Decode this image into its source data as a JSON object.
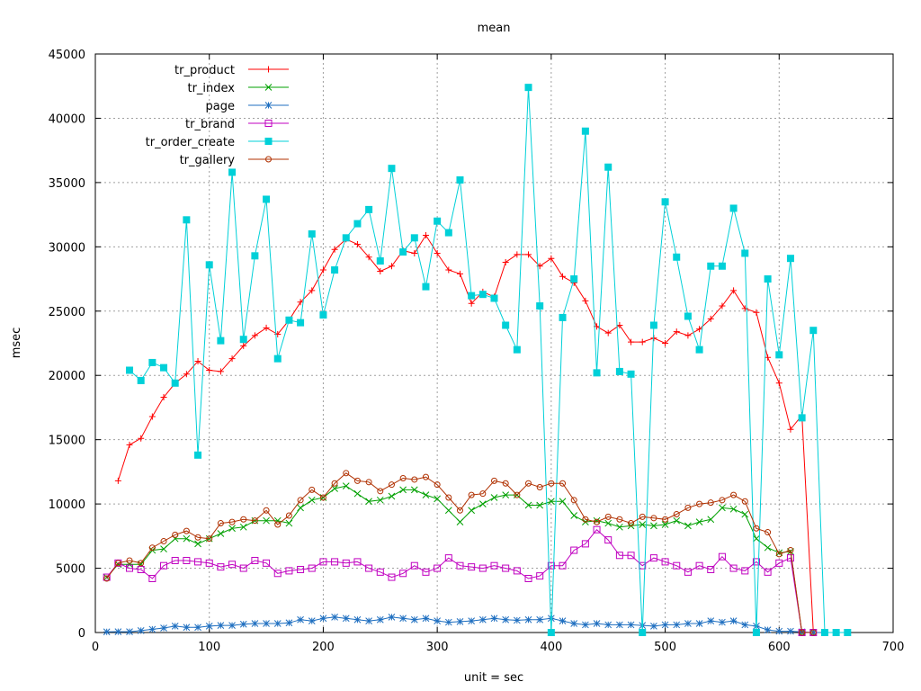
{
  "chart_data": {
    "type": "line",
    "title": "mean",
    "xlabel": "unit = sec",
    "ylabel": "msec",
    "xlim": [
      0,
      700
    ],
    "ylim": [
      0,
      45000
    ],
    "xticks": [
      0,
      100,
      200,
      300,
      400,
      500,
      600,
      700
    ],
    "yticks": [
      0,
      5000,
      10000,
      15000,
      20000,
      25000,
      30000,
      35000,
      40000,
      45000
    ],
    "grid": true,
    "legend_position": "top-left",
    "series": [
      {
        "name": "tr_product",
        "color": "#ff0000",
        "marker": "plus",
        "x": [
          20,
          30,
          40,
          50,
          60,
          70,
          80,
          90,
          100,
          110,
          120,
          130,
          140,
          150,
          160,
          170,
          180,
          190,
          200,
          210,
          220,
          230,
          240,
          250,
          260,
          270,
          280,
          290,
          300,
          310,
          320,
          330,
          340,
          350,
          360,
          370,
          380,
          390,
          400,
          410,
          420,
          430,
          440,
          450,
          460,
          470,
          480,
          490,
          500,
          510,
          520,
          530,
          540,
          550,
          560,
          570,
          580,
          590,
          600,
          610,
          620,
          630
        ],
        "y": [
          11800,
          14600,
          15100,
          16800,
          18300,
          19400,
          20100,
          21100,
          20400,
          20300,
          21300,
          22300,
          23100,
          23700,
          23200,
          24300,
          25700,
          26600,
          28200,
          29800,
          30600,
          30200,
          29200,
          28100,
          28500,
          29700,
          29500,
          30900,
          29500,
          28200,
          27900,
          25600,
          26500,
          26100,
          28800,
          29400,
          29400,
          28500,
          29100,
          27700,
          27200,
          25800,
          23800,
          23300,
          23900,
          22600,
          22600,
          22900,
          22500,
          23400,
          23100,
          23600,
          24400,
          25400,
          26600,
          25200,
          24900,
          21400,
          19400,
          15800,
          16900,
          0
        ]
      },
      {
        "name": "tr_index",
        "color": "#00a000",
        "marker": "x",
        "x": [
          10,
          20,
          30,
          40,
          50,
          60,
          70,
          80,
          90,
          100,
          110,
          120,
          130,
          140,
          150,
          160,
          170,
          180,
          190,
          200,
          210,
          220,
          230,
          240,
          250,
          260,
          270,
          280,
          290,
          300,
          310,
          320,
          330,
          340,
          350,
          360,
          370,
          380,
          390,
          400,
          410,
          420,
          430,
          440,
          450,
          460,
          470,
          480,
          490,
          500,
          510,
          520,
          530,
          540,
          550,
          560,
          570,
          580,
          590,
          600,
          610,
          620,
          630
        ],
        "y": [
          4300,
          5300,
          5300,
          5300,
          6400,
          6500,
          7300,
          7300,
          6900,
          7300,
          7700,
          8100,
          8200,
          8700,
          8700,
          8700,
          8500,
          9700,
          10300,
          10500,
          11200,
          11400,
          10800,
          10200,
          10300,
          10600,
          11100,
          11100,
          10700,
          10400,
          9500,
          8600,
          9500,
          10000,
          10500,
          10700,
          10700,
          9900,
          9900,
          10200,
          10200,
          9100,
          8600,
          8700,
          8500,
          8200,
          8300,
          8400,
          8300,
          8400,
          8700,
          8300,
          8600,
          8800,
          9700,
          9600,
          9200,
          7300,
          6600,
          6200,
          6300,
          0,
          0
        ]
      },
      {
        "name": "page",
        "color": "#1f6fc0",
        "marker": "star",
        "x": [
          10,
          20,
          30,
          40,
          50,
          60,
          70,
          80,
          90,
          100,
          110,
          120,
          130,
          140,
          150,
          160,
          170,
          180,
          190,
          200,
          210,
          220,
          230,
          240,
          250,
          260,
          270,
          280,
          290,
          300,
          310,
          320,
          330,
          340,
          350,
          360,
          370,
          380,
          390,
          400,
          410,
          420,
          430,
          440,
          450,
          460,
          470,
          480,
          490,
          500,
          510,
          520,
          530,
          540,
          550,
          560,
          570,
          580,
          590,
          600,
          610,
          620,
          630,
          640
        ],
        "y": [
          50,
          60,
          60,
          150,
          250,
          350,
          500,
          400,
          400,
          500,
          550,
          550,
          650,
          700,
          700,
          700,
          750,
          1000,
          900,
          1100,
          1200,
          1100,
          1000,
          900,
          1000,
          1200,
          1100,
          1000,
          1100,
          900,
          800,
          850,
          900,
          1000,
          1100,
          1000,
          950,
          1000,
          1000,
          1100,
          900,
          700,
          600,
          700,
          600,
          600,
          600,
          550,
          500,
          600,
          600,
          700,
          700,
          900,
          800,
          900,
          600,
          500,
          200,
          100,
          100,
          50,
          0,
          0
        ]
      },
      {
        "name": "tr_brand",
        "color": "#c000c0",
        "marker": "square-open",
        "x": [
          10,
          20,
          30,
          40,
          50,
          60,
          70,
          80,
          90,
          100,
          110,
          120,
          130,
          140,
          150,
          160,
          170,
          180,
          190,
          200,
          210,
          220,
          230,
          240,
          250,
          260,
          270,
          280,
          290,
          300,
          310,
          320,
          330,
          340,
          350,
          360,
          370,
          380,
          390,
          400,
          410,
          420,
          430,
          440,
          450,
          460,
          470,
          480,
          490,
          500,
          510,
          520,
          530,
          540,
          550,
          560,
          570,
          580,
          590,
          600,
          610,
          620,
          630
        ],
        "y": [
          4300,
          5400,
          5000,
          4900,
          4200,
          5200,
          5600,
          5600,
          5500,
          5400,
          5100,
          5300,
          5000,
          5600,
          5400,
          4600,
          4800,
          4900,
          5000,
          5500,
          5500,
          5400,
          5500,
          5000,
          4700,
          4300,
          4600,
          5200,
          4700,
          5000,
          5800,
          5200,
          5100,
          5000,
          5200,
          5000,
          4800,
          4200,
          4400,
          5200,
          5200,
          6400,
          6900,
          8000,
          7200,
          6000,
          6000,
          5200,
          5800,
          5500,
          5200,
          4700,
          5200,
          4900,
          5900,
          5000,
          4800,
          5500,
          4700,
          5400,
          5800,
          0,
          0
        ]
      },
      {
        "name": "tr_order_create",
        "color": "#00d0d8",
        "marker": "square",
        "x": [
          30,
          40,
          50,
          60,
          70,
          80,
          90,
          100,
          110,
          120,
          130,
          140,
          150,
          160,
          170,
          180,
          190,
          200,
          210,
          220,
          230,
          240,
          250,
          260,
          270,
          280,
          290,
          300,
          310,
          320,
          330,
          340,
          350,
          360,
          370,
          380,
          390,
          400,
          410,
          420,
          430,
          440,
          450,
          460,
          470,
          480,
          490,
          500,
          510,
          520,
          530,
          540,
          550,
          560,
          570,
          580,
          590,
          600,
          610,
          620,
          630,
          640,
          650,
          660
        ],
        "y": [
          20400,
          19600,
          21000,
          20600,
          19400,
          32100,
          13800,
          28600,
          22700,
          35800,
          22800,
          29300,
          33700,
          21300,
          24300,
          24100,
          31000,
          24700,
          28200,
          30700,
          31800,
          32900,
          28900,
          36100,
          29600,
          30700,
          26900,
          32000,
          31100,
          35200,
          26200,
          26300,
          26000,
          23900,
          22000,
          42400,
          25400,
          0,
          24500,
          27500,
          39000,
          20200,
          36200,
          20300,
          20100,
          0,
          23900,
          33500,
          29200,
          24600,
          22000,
          28500,
          28500,
          33000,
          29500,
          0,
          27500,
          21600,
          29100,
          16700,
          23500,
          0,
          0,
          0
        ]
      },
      {
        "name": "tr_gallery",
        "color": "#b03000",
        "marker": "circle-open",
        "x": [
          10,
          20,
          30,
          40,
          50,
          60,
          70,
          80,
          90,
          100,
          110,
          120,
          130,
          140,
          150,
          160,
          170,
          180,
          190,
          200,
          210,
          220,
          230,
          240,
          250,
          260,
          270,
          280,
          290,
          300,
          310,
          320,
          330,
          340,
          350,
          360,
          370,
          380,
          390,
          400,
          410,
          420,
          430,
          440,
          450,
          460,
          470,
          480,
          490,
          500,
          510,
          520,
          530,
          540,
          550,
          560,
          570,
          580,
          590,
          600,
          610,
          620,
          630
        ],
        "y": [
          4200,
          5400,
          5600,
          5400,
          6600,
          7100,
          7600,
          7900,
          7400,
          7300,
          8500,
          8600,
          8800,
          8700,
          9500,
          8400,
          9100,
          10300,
          11100,
          10500,
          11600,
          12400,
          11800,
          11700,
          11000,
          11500,
          12000,
          11900,
          12100,
          11500,
          10500,
          9500,
          10700,
          10800,
          11800,
          11600,
          10700,
          11600,
          11300,
          11600,
          11600,
          10300,
          8800,
          8600,
          9000,
          8800,
          8500,
          9000,
          8900,
          8800,
          9200,
          9700,
          10000,
          10100,
          10300,
          10700,
          10200,
          8100,
          7800,
          6100,
          6400,
          0,
          0
        ]
      }
    ]
  }
}
